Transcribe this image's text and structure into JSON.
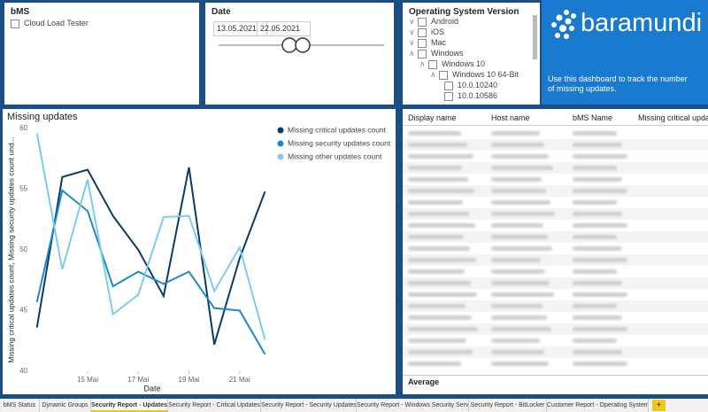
{
  "slicers": {
    "bms": {
      "title": "bMS",
      "items": [
        "Cloud Load Tester"
      ]
    },
    "date": {
      "title": "Date",
      "from": "13.05.2021",
      "to": "22.05.2021"
    },
    "os": {
      "title": "Operating System Version",
      "items": [
        "Android",
        "iOS",
        "Mac",
        "Windows",
        "Windows 10",
        "Windows 10 64-Bit",
        "10.0.10240",
        "10.0.10586"
      ]
    }
  },
  "brand": {
    "logo": "baramundi",
    "text": "Use this dashboard to track the number of missing updates."
  },
  "table": {
    "columns": [
      "Display name",
      "Host name",
      "bMS Name",
      "Missing critical upda"
    ],
    "footer": "Average"
  },
  "tabs": [
    "bMS Status",
    "Dynamic Groups",
    "Security Report - Updates",
    "Security Report - Critical Updates",
    "Security Report - Security Updates",
    "Security Report - Windows Security Services",
    "Security Report - BitLocker",
    "Customer Report - Operating Systems",
    "+"
  ],
  "chart_data": {
    "type": "line",
    "title": "Missing updates",
    "x_label": "Date",
    "y_label": "Missing critical updates count, Missing security updates count und...",
    "x": [
      13,
      14,
      15,
      16,
      17,
      18,
      19,
      20,
      21,
      22
    ],
    "xlim": [
      12.8,
      22.3
    ],
    "xticks": [
      {
        "value": 15,
        "label": "15 Mai"
      },
      {
        "value": 17,
        "label": "17 Mai"
      },
      {
        "value": 19,
        "label": "19 Mai"
      },
      {
        "value": 21,
        "label": "21 Mai"
      }
    ],
    "ylim": [
      40,
      60
    ],
    "yticks": [
      40,
      45,
      50,
      55,
      60
    ],
    "series": [
      {
        "name": "Missing critical updates count",
        "color": "#0b3a6a",
        "values": [
          43.6,
          56.0,
          56.6,
          52.8,
          50.0,
          46.2,
          56.8,
          42.2,
          49.3,
          54.8
        ]
      },
      {
        "name": "Missing security updates count",
        "color": "#1a8ac8",
        "values": [
          45.7,
          54.9,
          53.2,
          47.0,
          48.2,
          47.2,
          48.2,
          45.2,
          45.0,
          41.4
        ]
      },
      {
        "name": "Missing other updates count",
        "color": "#7ccbf0",
        "values": [
          59.6,
          48.4,
          55.8,
          44.7,
          46.3,
          52.7,
          52.8,
          46.6,
          50.2,
          42.6
        ]
      }
    ]
  }
}
